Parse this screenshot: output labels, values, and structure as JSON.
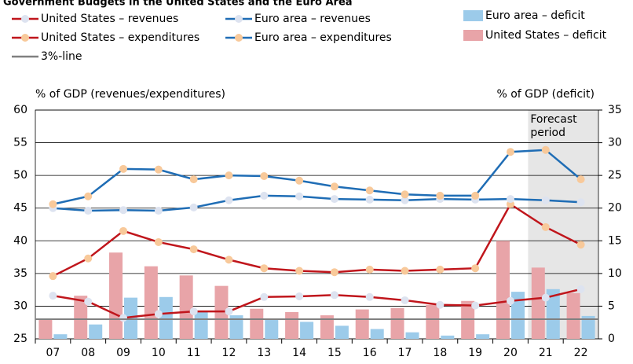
{
  "chart_data": {
    "type": "bar_line",
    "title": "Government Budgets in the United States and the Euro Area",
    "y_label": "% of GDP (revenues/expenditures)",
    "y2_label": "% of GDP (deficit)",
    "forecast": {
      "label": [
        "Forecast",
        "period"
      ],
      "start": "21",
      "color": "#e6e6e6"
    },
    "categories": [
      "07",
      "08",
      "09",
      "10",
      "11",
      "12",
      "13",
      "14",
      "15",
      "16",
      "17",
      "18",
      "19",
      "20",
      "21",
      "22"
    ],
    "ylim": [
      25,
      60
    ],
    "yticks": [
      25,
      30,
      35,
      40,
      45,
      50,
      55,
      60
    ],
    "y2lim": [
      0,
      35
    ],
    "y2ticks": [
      0,
      5,
      10,
      15,
      20,
      25,
      30,
      35
    ],
    "grid": true,
    "series": [
      {
        "name": "United States – revenues",
        "kind": "line",
        "color": "#c0161c",
        "marker_color": "#dde3f0",
        "values": [
          31.6,
          30.7,
          28.2,
          28.8,
          29.2,
          29.2,
          31.4,
          31.5,
          31.7,
          31.4,
          30.9,
          30.2,
          30.1,
          30.8,
          31.3,
          32.6
        ]
      },
      {
        "name": "United States – expenditures",
        "kind": "line",
        "color": "#c0161c",
        "marker_color": "#f8c99a",
        "values": [
          34.6,
          37.3,
          41.5,
          39.8,
          38.7,
          37.1,
          35.8,
          35.4,
          35.2,
          35.6,
          35.4,
          35.6,
          35.8,
          45.6,
          42.1,
          39.4
        ]
      },
      {
        "name": "3%-line",
        "kind": "line",
        "axis": "y2",
        "color": "#808080",
        "values": [
          3,
          3,
          3,
          3,
          3,
          3,
          3,
          3,
          3,
          3,
          3,
          3,
          3,
          3,
          3,
          3
        ]
      },
      {
        "name": "Euro area – revenues",
        "kind": "line",
        "color": "#1f6db5",
        "marker_color": "#dde3f0",
        "values": [
          45.0,
          44.6,
          44.7,
          44.6,
          45.1,
          46.2,
          46.9,
          46.8,
          46.4,
          46.3,
          46.2,
          46.4,
          46.3,
          46.4,
          46.2,
          45.9
        ]
      },
      {
        "name": "Euro area – expenditures",
        "kind": "line",
        "color": "#1f6db5",
        "marker_color": "#f8c99a",
        "values": [
          45.6,
          46.8,
          51.0,
          50.9,
          49.4,
          50.0,
          49.9,
          49.2,
          48.3,
          47.7,
          47.1,
          46.9,
          46.9,
          53.6,
          53.9,
          49.4
        ]
      },
      {
        "name": "Euro area – deficit",
        "kind": "bar",
        "axis": "y2",
        "color": "#9ccbea",
        "values": [
          0.7,
          2.2,
          6.3,
          6.4,
          4.1,
          3.6,
          3.1,
          2.6,
          2.0,
          1.5,
          1.0,
          0.5,
          0.7,
          7.2,
          7.6,
          3.5
        ]
      },
      {
        "name": "United States – deficit",
        "kind": "bar",
        "axis": "y2",
        "color": "#e8a4a8",
        "values": [
          3.0,
          6.6,
          13.2,
          11.1,
          9.7,
          8.1,
          4.6,
          4.1,
          3.6,
          4.5,
          4.7,
          5.2,
          5.8,
          15.0,
          10.9,
          7.0
        ]
      }
    ]
  }
}
